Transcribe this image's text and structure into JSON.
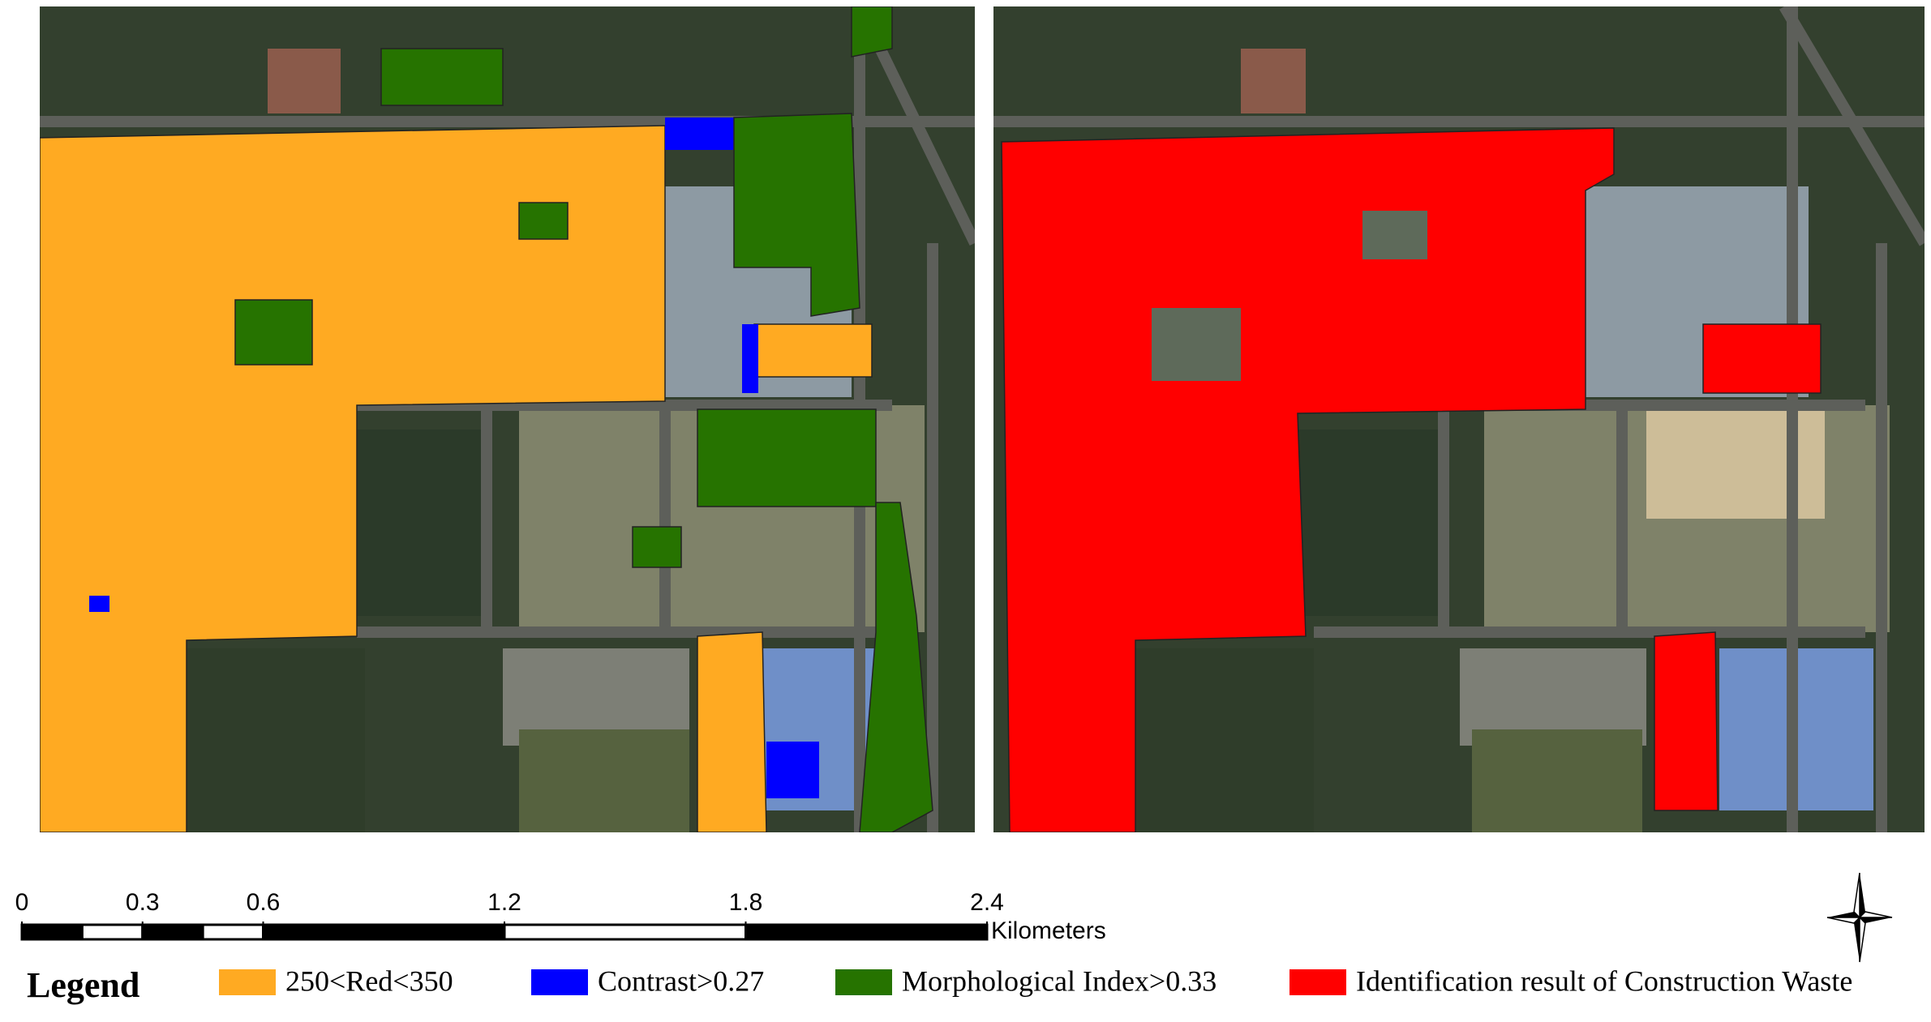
{
  "scale_bar": {
    "ticks": [
      0,
      0.3,
      0.6,
      1.2,
      1.8,
      2.4
    ],
    "unit": "Kilometers"
  },
  "legend": {
    "title": "Legend",
    "items": [
      {
        "label": "250<Red<350",
        "color": "#ffaa22"
      },
      {
        "label": "Contrast>0.27",
        "color": "#0000ff"
      },
      {
        "label": "Morphological Index>0.33",
        "color": "#267300"
      },
      {
        "label": "Identification result of Construction Waste",
        "color": "#ff0000"
      }
    ]
  }
}
